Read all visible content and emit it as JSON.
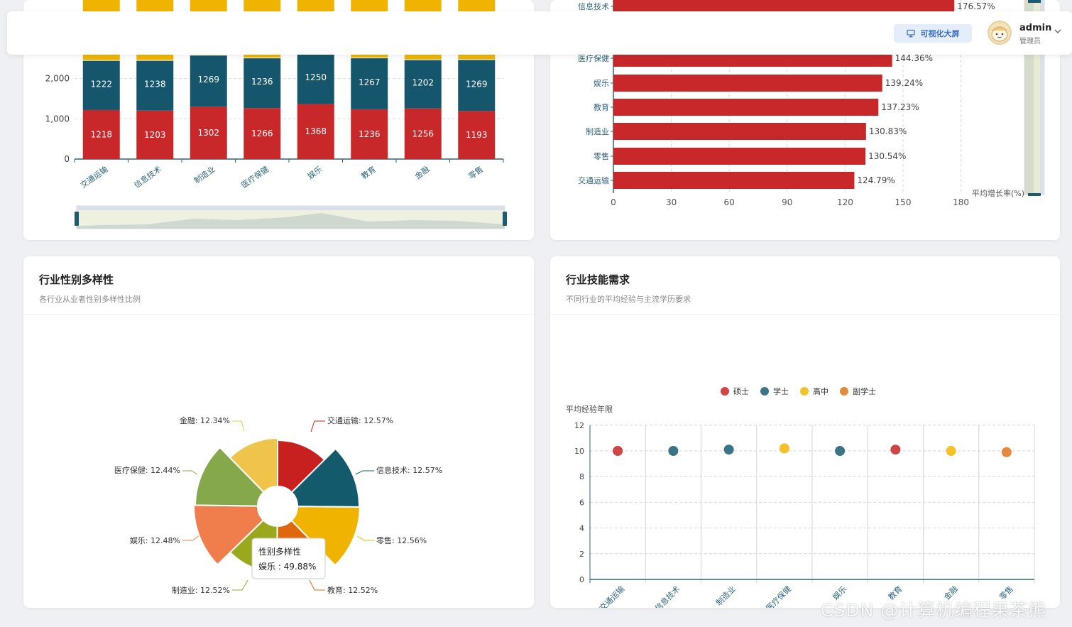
{
  "topbar": {
    "viz_button": "可视化大屏",
    "user_name": "admin",
    "user_role": "管理员"
  },
  "watermark": "CSDN @计算机编程果茶熊",
  "colors": {
    "red": "#c8282a",
    "teal": "#15566c",
    "yellow": "#f0b400"
  },
  "top_left_chart": {
    "y_ticks": [
      "0",
      "1,000",
      "2,000"
    ],
    "categories": [
      "交通运输",
      "信息技术",
      "制造业",
      "医疗保健",
      "娱乐",
      "教育",
      "金融",
      "零售"
    ],
    "series_bottom": [
      1218,
      1203,
      1302,
      1266,
      1368,
      1236,
      1256,
      1193
    ],
    "series_middle": [
      1222,
      1238,
      1269,
      1236,
      1250,
      1267,
      1202,
      1269
    ],
    "bottom_labels": [
      "1218",
      "1203",
      "1302",
      "1266",
      "1368",
      "1236",
      "1256",
      "1193"
    ],
    "middle_labels": [
      "1222",
      "1238",
      "1269",
      "1236",
      "1250",
      "1267",
      "1202",
      "1269"
    ]
  },
  "top_right_chart": {
    "categories": [
      "信息技术",
      "医疗保健",
      "娱乐",
      "教育",
      "制造业",
      "零售",
      "交通运输"
    ],
    "values": [
      176.57,
      144.36,
      139.24,
      137.23,
      130.83,
      130.54,
      124.79
    ],
    "labels": [
      "176.57%",
      "144.36%",
      "139.24%",
      "137.23%",
      "130.83%",
      "130.54%",
      "124.79%"
    ],
    "x_ticks": [
      "0",
      "30",
      "60",
      "90",
      "120",
      "150",
      "180"
    ],
    "axis_name": "平均增长率(%)"
  },
  "chart_data": [
    {
      "type": "bar",
      "title": "",
      "stacked": true,
      "categories": [
        "交通运输",
        "信息技术",
        "制造业",
        "医疗保健",
        "娱乐",
        "教育",
        "金融",
        "零售"
      ],
      "series": [
        {
          "name": "bottom",
          "values": [
            1218,
            1203,
            1302,
            1266,
            1368,
            1236,
            1256,
            1193
          ]
        },
        {
          "name": "middle",
          "values": [
            1222,
            1238,
            1269,
            1236,
            1250,
            1267,
            1202,
            1269
          ]
        }
      ]
    },
    {
      "type": "bar",
      "orientation": "horizontal",
      "categories": [
        "信息技术",
        "医疗保健",
        "娱乐",
        "教育",
        "制造业",
        "零售",
        "交通运输"
      ],
      "values": [
        176.57,
        144.36,
        139.24,
        137.23,
        130.83,
        130.54,
        124.79
      ],
      "xlabel": "平均增长率(%)",
      "xlim": [
        0,
        180
      ]
    },
    {
      "type": "pie",
      "title": "行业性别多样性",
      "labels": [
        "交通运输",
        "信息技术",
        "零售",
        "教育",
        "制造业",
        "娱乐",
        "医疗保健",
        "金融"
      ],
      "values": [
        12.57,
        12.57,
        12.56,
        12.52,
        12.52,
        12.48,
        12.44,
        12.34
      ],
      "tooltip": {
        "name": "娱乐",
        "value": 49.88
      }
    },
    {
      "type": "scatter",
      "title": "行业技能需求",
      "ylabel": "平均经验年限",
      "ylim": [
        0,
        12
      ],
      "categories": [
        "交通运输",
        "信息技术",
        "制造业",
        "医疗保健",
        "娱乐",
        "教育",
        "金融",
        "零售"
      ],
      "values": [
        10,
        10,
        10.1,
        10.2,
        10,
        10.1,
        10,
        9.9
      ],
      "groups": [
        "硕士",
        "学士",
        "学士",
        "高中",
        "学士",
        "硕士",
        "高中",
        "副学士"
      ]
    }
  ],
  "pie_card": {
    "title": "行业性别多样性",
    "subtitle": "各行业从业者性别多样性比例",
    "names": [
      "交通运输",
      "信息技术",
      "零售",
      "教育",
      "制造业",
      "娱乐",
      "医疗保健",
      "金融"
    ],
    "values": [
      12.57,
      12.57,
      12.56,
      12.52,
      12.52,
      12.48,
      12.44,
      12.34
    ],
    "labels": [
      "交通运输: 12.57%",
      "信息技术: 12.57%",
      "零售: 12.56%",
      "教育: 12.52%",
      "制造业: 12.52%",
      "娱乐: 12.48%",
      "医疗保健: 12.44%",
      "金融: 12.34%"
    ],
    "colors": [
      "#c8201e",
      "#135a6c",
      "#f0b400",
      "#e0680c",
      "#9aa81c",
      "#f07e4c",
      "#84a84a",
      "#efc44a"
    ],
    "tooltip_title": "性别多样性",
    "tooltip_value": "娱乐 : 49.88%"
  },
  "scatter_card": {
    "title": "行业技能需求",
    "subtitle": "不同行业的平均经验与主流学历要求",
    "y_axis_name": "平均经验年限",
    "y_ticks": [
      "0",
      "2",
      "4",
      "6",
      "8",
      "10",
      "12"
    ],
    "legend": [
      "硕士",
      "学士",
      "高中",
      "副学士"
    ],
    "legend_colors": [
      "#cf4444",
      "#3a7486",
      "#f2c228",
      "#e58a3c"
    ],
    "categories": [
      "交通运输",
      "信息技术",
      "制造业",
      "医疗保健",
      "娱乐",
      "教育",
      "金融",
      "零售"
    ],
    "values": [
      10,
      10,
      10.1,
      10.2,
      10,
      10.1,
      10,
      9.9
    ],
    "groups": [
      "硕士",
      "学士",
      "学士",
      "高中",
      "学士",
      "硕士",
      "高中",
      "副学士"
    ]
  }
}
